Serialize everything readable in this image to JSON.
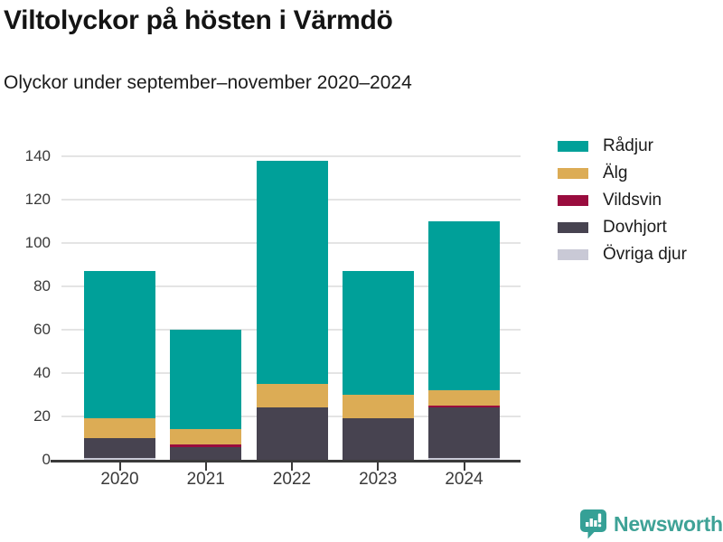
{
  "header": {
    "title": "Viltolyckor på hösten i Värmdö",
    "subtitle": "Olyckor under september–november 2020–2024"
  },
  "chart_data": {
    "type": "bar",
    "stacked": true,
    "title": "Viltolyckor på hösten i Värmdö",
    "subtitle": "Olyckor under september–november 2020–2024",
    "categories": [
      "2020",
      "2021",
      "2022",
      "2023",
      "2024"
    ],
    "series_bottom_to_top": [
      {
        "name": "Övriga djur",
        "color": "#c9c9d6",
        "values": [
          1,
          0,
          0,
          0,
          1
        ]
      },
      {
        "name": "Dovhjort",
        "color": "#474350",
        "values": [
          9,
          6,
          24,
          19,
          23
        ]
      },
      {
        "name": "Vildsvin",
        "color": "#990c3e",
        "values": [
          0,
          1,
          0,
          0,
          1
        ]
      },
      {
        "name": "Älg",
        "color": "#dcac55",
        "values": [
          9,
          7,
          11,
          11,
          7
        ]
      },
      {
        "name": "Rådjur",
        "color": "#00a099",
        "values": [
          68,
          46,
          103,
          57,
          78
        ]
      }
    ],
    "stack_totals": [
      87,
      60,
      138,
      87,
      110
    ],
    "legend_order_top_to_bottom": [
      "Rådjur",
      "Älg",
      "Vildsvin",
      "Dovhjort",
      "Övriga djur"
    ],
    "legend_position": "right",
    "xlabel": "",
    "ylabel": "",
    "ylim": [
      0,
      140
    ],
    "yticks": [
      0,
      20,
      40,
      60,
      80,
      100,
      120,
      140
    ],
    "grid": "horizontal-only",
    "axis_color": "#3a3a3a",
    "gridline_color": "#e4e4e4"
  },
  "footer": {
    "brand": "Newsworthy",
    "brand_color": "#3ea296"
  }
}
